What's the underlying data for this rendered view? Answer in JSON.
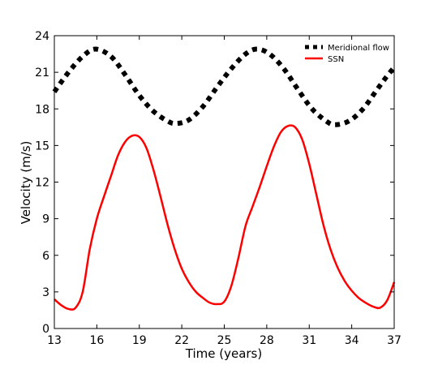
{
  "chart_data": {
    "type": "line",
    "xlabel": "Time (years)",
    "ylabel": "Velocity (m/s)",
    "xlim": [
      13,
      37
    ],
    "ylim": [
      0,
      24
    ],
    "xticks": [
      "13",
      "16",
      "19",
      "22",
      "25",
      "28",
      "31",
      "34",
      "37"
    ],
    "yticks": [
      "0",
      "3",
      "6",
      "9",
      "12",
      "15",
      "18",
      "21",
      "24"
    ],
    "grid": false,
    "legend_position": "top-right",
    "series": [
      {
        "name": "Meridional flow",
        "color": "#000000",
        "style": "dotted",
        "x": [
          13,
          14,
          15,
          15.9,
          17,
          18,
          19,
          20,
          21,
          21.6,
          22.5,
          23.5,
          24.5,
          25.5,
          26.5,
          27.3,
          28.2,
          29.2,
          30.2,
          31.2,
          32.2,
          32.8,
          33.8,
          34.8,
          35.8,
          36.5,
          37
        ],
        "values": [
          19.4,
          21.0,
          22.3,
          22.9,
          22.3,
          20.8,
          19.1,
          17.8,
          17.0,
          16.8,
          17.1,
          18.2,
          19.8,
          21.3,
          22.5,
          22.9,
          22.5,
          21.3,
          19.6,
          18.0,
          17.0,
          16.7,
          17.0,
          18.0,
          19.6,
          20.7,
          21.4
        ]
      },
      {
        "name": "SSN",
        "color": "#ff0000",
        "style": "solid",
        "x": [
          13,
          13.5,
          14,
          14.5,
          15,
          15.5,
          16,
          16.5,
          17,
          17.5,
          18,
          18.5,
          19,
          19.5,
          20,
          20.5,
          21,
          21.5,
          22,
          22.5,
          23,
          23.5,
          24,
          24.5,
          25,
          25.5,
          26,
          26.5,
          27,
          27.5,
          28,
          28.5,
          29,
          29.5,
          30,
          30.5,
          31,
          31.5,
          32,
          32.5,
          33,
          33.5,
          34,
          34.5,
          35,
          35.5,
          36,
          36.5,
          37
        ],
        "values": [
          2.4,
          1.9,
          1.6,
          1.7,
          3.0,
          6.5,
          9.0,
          10.8,
          12.5,
          14.2,
          15.3,
          15.8,
          15.7,
          14.8,
          13.0,
          10.8,
          8.5,
          6.5,
          4.9,
          3.8,
          3.0,
          2.5,
          2.1,
          2.0,
          2.2,
          3.5,
          5.8,
          8.4,
          10.0,
          11.6,
          13.3,
          14.9,
          16.1,
          16.6,
          16.5,
          15.5,
          13.5,
          11.0,
          8.5,
          6.5,
          5.0,
          3.9,
          3.1,
          2.5,
          2.1,
          1.8,
          1.7,
          2.3,
          3.8
        ]
      }
    ]
  }
}
